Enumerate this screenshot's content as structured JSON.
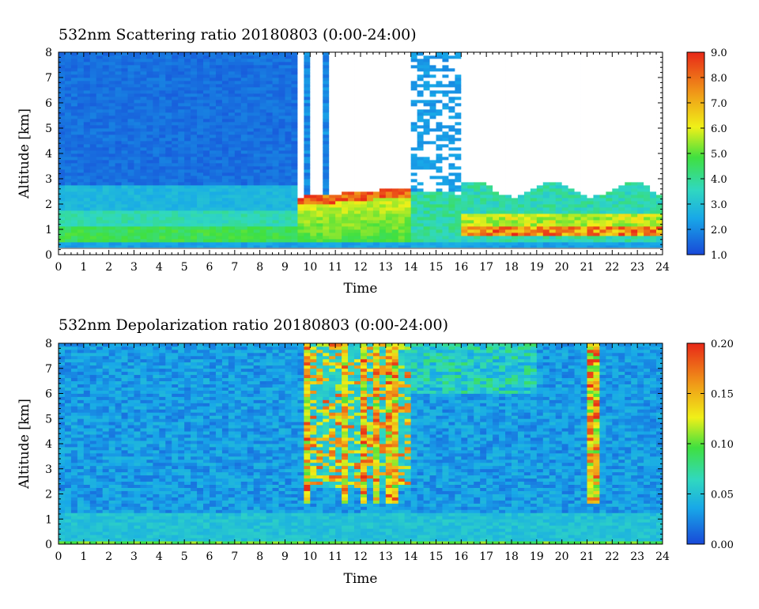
{
  "chart_data": [
    {
      "type": "heatmap",
      "title": "532nm Scattering ratio  20180803 (0:00-24:00)",
      "xlabel": "Time",
      "ylabel": "Altitude [km]",
      "xlim": [
        0,
        24
      ],
      "ylim": [
        0,
        8
      ],
      "xticks": [
        "0",
        "1",
        "2",
        "3",
        "4",
        "5",
        "6",
        "7",
        "8",
        "9",
        "10",
        "11",
        "12",
        "13",
        "14",
        "15",
        "16",
        "17",
        "18",
        "19",
        "20",
        "21",
        "22",
        "23",
        "24"
      ],
      "yticks": [
        "0",
        "1",
        "2",
        "3",
        "4",
        "5",
        "6",
        "7",
        "8"
      ],
      "colorbar": {
        "min": 1.0,
        "max": 9.0,
        "ticks": [
          "1.0",
          "2.0",
          "3.0",
          "4.0",
          "5.0",
          "6.0",
          "7.0",
          "8.0",
          "9.0"
        ],
        "colormap": [
          "#1848d8",
          "#18a8e8",
          "#30d8c0",
          "#40e040",
          "#f0f018",
          "#f09818",
          "#e82818"
        ]
      },
      "features": [
        {
          "name": "low aerosol layer",
          "time_range": [
            0,
            9.5
          ],
          "altitude_top_km": 2.8,
          "value_range": [
            2.0,
            4.5
          ]
        },
        {
          "name": "dense boundary layer",
          "time_range": [
            9.5,
            14
          ],
          "altitude_top_km": 2.5,
          "value_range": [
            5.0,
            9.0
          ]
        },
        {
          "name": "upper convective column",
          "time_range": [
            14,
            16
          ],
          "altitude_top_km": 8,
          "value_range": [
            1.5,
            3.0
          ]
        },
        {
          "name": "evening aerosol layer",
          "time_range": [
            15.5,
            24
          ],
          "altitude_top_km": 3.0,
          "value_range": [
            6.0,
            9.0
          ]
        }
      ],
      "missing_data_regions": [
        {
          "time_range": [
            9.5,
            14
          ],
          "altitude_range_km": [
            2.5,
            8
          ]
        },
        {
          "time_range": [
            16,
            24
          ],
          "altitude_range_km": [
            3.2,
            8
          ]
        }
      ]
    },
    {
      "type": "heatmap",
      "title": "532nm Depolarization ratio  20180803 (0:00-24:00)",
      "xlabel": "Time",
      "ylabel": "Altitude [km]",
      "xlim": [
        0,
        24
      ],
      "ylim": [
        0,
        8
      ],
      "xticks": [
        "0",
        "1",
        "2",
        "3",
        "4",
        "5",
        "6",
        "7",
        "8",
        "9",
        "10",
        "11",
        "12",
        "13",
        "14",
        "15",
        "16",
        "17",
        "18",
        "19",
        "20",
        "21",
        "22",
        "23",
        "24"
      ],
      "yticks": [
        "0",
        "1",
        "2",
        "3",
        "4",
        "5",
        "6",
        "7",
        "8"
      ],
      "colorbar": {
        "min": 0.0,
        "max": 0.2,
        "ticks": [
          "0.00",
          "0.05",
          "0.10",
          "0.15",
          "0.20"
        ],
        "colormap": [
          "#1848d8",
          "#18a8e8",
          "#30d8c0",
          "#40e040",
          "#f0f018",
          "#f09818",
          "#e82818"
        ]
      },
      "features": [
        {
          "name": "high depolarization columns",
          "time_range": [
            9.7,
            14
          ],
          "altitude_range_km": [
            1.5,
            8
          ],
          "value_range": [
            0.1,
            0.2
          ]
        },
        {
          "name": "narrow column",
          "time_range": [
            21.1,
            21.5
          ],
          "altitude_range_km": [
            1.5,
            8
          ],
          "value_range": [
            0.1,
            0.2
          ]
        },
        {
          "name": "background",
          "time_range": [
            0,
            24
          ],
          "altitude_range_km": [
            0,
            8
          ],
          "value_range": [
            0.01,
            0.04
          ]
        }
      ]
    }
  ]
}
